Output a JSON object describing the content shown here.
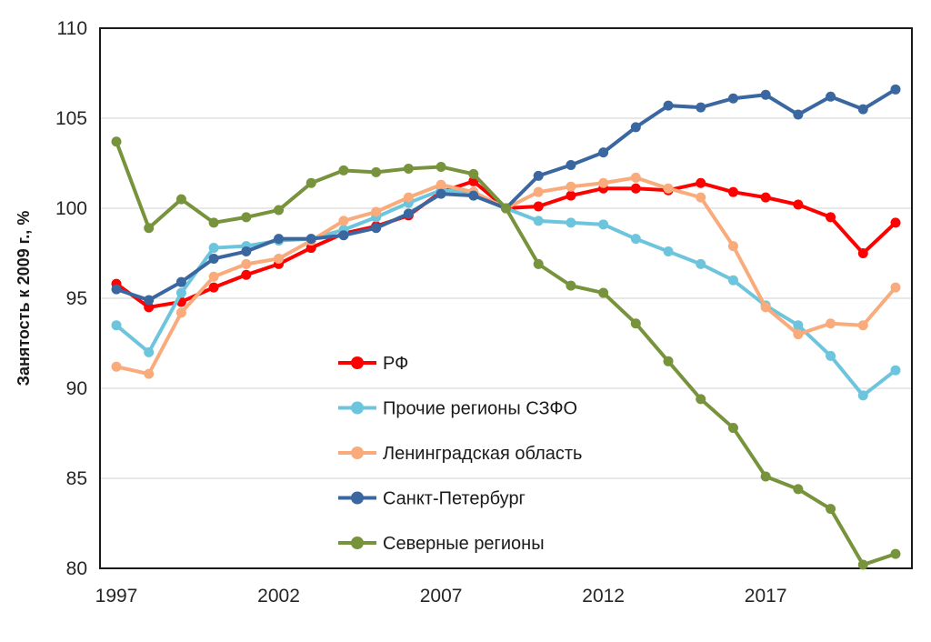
{
  "chart_data": {
    "type": "line",
    "title": "",
    "xlabel": "",
    "ylabel": "Занятость к 2009 г., %",
    "x": [
      1997,
      1998,
      1999,
      2000,
      2001,
      2002,
      2003,
      2004,
      2005,
      2006,
      2007,
      2008,
      2009,
      2010,
      2011,
      2012,
      2013,
      2014,
      2015,
      2016,
      2017,
      2018,
      2019,
      2020,
      2021
    ],
    "xtick_labels": [
      "1997",
      "2002",
      "2007",
      "2012",
      "2017"
    ],
    "xtick_years": [
      1997,
      2002,
      2007,
      2012,
      2017
    ],
    "ylim": [
      80,
      110
    ],
    "yticks": [
      80,
      85,
      90,
      95,
      100,
      105,
      110
    ],
    "ytick_labels": [
      "80",
      "85",
      "90",
      "95",
      "100",
      "105",
      "110"
    ],
    "grid": "horizontal",
    "legend_position": "inside-lower-center",
    "series": [
      {
        "name": "РФ",
        "color": "#fe0000",
        "values": [
          95.8,
          94.5,
          94.8,
          95.6,
          96.3,
          96.9,
          97.8,
          98.6,
          99.0,
          99.6,
          100.9,
          101.5,
          100.0,
          100.1,
          100.7,
          101.1,
          101.1,
          101.0,
          101.4,
          100.9,
          100.6,
          100.2,
          99.5,
          97.5,
          99.2
        ]
      },
      {
        "name": "Прочие регионы СЗФО",
        "color": "#6cc5dd",
        "values": [
          93.5,
          92.0,
          95.3,
          97.8,
          97.9,
          98.2,
          98.3,
          98.8,
          99.5,
          100.3,
          101.0,
          100.9,
          100.0,
          99.3,
          99.2,
          99.1,
          98.3,
          97.6,
          96.9,
          96.0,
          94.6,
          93.5,
          91.8,
          89.6,
          91.0
        ]
      },
      {
        "name": "Ленинградская область",
        "color": "#f9ab7c",
        "values": [
          91.2,
          90.8,
          94.2,
          96.2,
          96.9,
          97.2,
          98.2,
          99.3,
          99.8,
          100.6,
          101.3,
          100.9,
          100.0,
          100.9,
          101.2,
          101.4,
          101.7,
          101.1,
          100.6,
          97.9,
          94.5,
          93.0,
          93.6,
          93.5,
          95.6
        ]
      },
      {
        "name": "Санкт-Петербург",
        "color": "#3a67a0",
        "values": [
          95.5,
          94.9,
          95.9,
          97.2,
          97.6,
          98.3,
          98.3,
          98.5,
          98.9,
          99.7,
          100.8,
          100.7,
          100.0,
          101.8,
          102.4,
          103.1,
          104.5,
          105.7,
          105.6,
          106.1,
          106.3,
          105.2,
          106.2,
          105.5,
          106.6
        ]
      },
      {
        "name": "Северные регионы",
        "color": "#77933c",
        "values": [
          103.7,
          98.9,
          100.5,
          99.2,
          99.5,
          99.9,
          101.4,
          102.1,
          102.0,
          102.2,
          102.3,
          101.9,
          100.0,
          96.9,
          95.7,
          95.3,
          93.6,
          91.5,
          89.4,
          87.8,
          85.1,
          84.4,
          83.3,
          80.2,
          80.8
        ]
      }
    ],
    "colors": {
      "gridline": "#d9d9d9",
      "plot_border": "#1a1a1a",
      "tick_text": "#262626",
      "background": "#ffffff"
    }
  }
}
